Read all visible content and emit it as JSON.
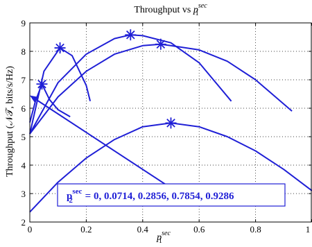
{
  "chart_data": {
    "type": "line",
    "title": "Throughput vs ",
    "title_math": "p",
    "title_sub": "1",
    "title_sup": "sec",
    "xlabel_math": "p",
    "xlabel_sub": "1",
    "xlabel_sup": "sec",
    "ylabel": "Throughput (𝒩𝒯, bits/s/Hz)",
    "xlim": [
      0,
      1
    ],
    "ylim": [
      2,
      9
    ],
    "xticks": [
      0,
      0.2,
      0.4,
      0.6,
      0.8,
      1
    ],
    "xtick_labels": [
      "0",
      "0.2",
      "0.4",
      "0.6",
      "0.8",
      "1"
    ],
    "yticks": [
      2,
      3,
      4,
      5,
      6,
      7,
      8,
      9
    ],
    "ytick_labels": [
      "2",
      "3",
      "4",
      "5",
      "6",
      "7",
      "8",
      "9"
    ],
    "grid": true,
    "line_color": "#1f1fd6",
    "series": [
      {
        "x": [
          0,
          0.02,
          0.043,
          0.07,
          0.1,
          0.143
        ],
        "y": [
          5.5,
          6.25,
          6.85,
          6.3,
          5.95,
          5.7
        ]
      },
      {
        "x": [
          0,
          0.05,
          0.107,
          0.15,
          0.2,
          0.214
        ],
        "y": [
          5.1,
          7.3,
          8.12,
          7.85,
          6.8,
          6.25
        ]
      },
      {
        "x": [
          0,
          0.1,
          0.2,
          0.3,
          0.357,
          0.4,
          0.5,
          0.6,
          0.714
        ],
        "y": [
          5.1,
          6.9,
          7.9,
          8.45,
          8.58,
          8.55,
          8.3,
          7.6,
          6.25
        ]
      },
      {
        "x": [
          0,
          0.1,
          0.2,
          0.3,
          0.4,
          0.464,
          0.5,
          0.6,
          0.7,
          0.8,
          0.929
        ],
        "y": [
          5.1,
          6.4,
          7.3,
          7.9,
          8.2,
          8.25,
          8.2,
          8.05,
          7.65,
          7.0,
          5.9
        ]
      },
      {
        "x": [
          0,
          0.1,
          0.2,
          0.3,
          0.4,
          0.5,
          0.6,
          0.7,
          0.8,
          0.9,
          1.0
        ],
        "y": [
          2.35,
          3.4,
          4.25,
          4.9,
          5.35,
          5.48,
          5.35,
          5.0,
          4.5,
          3.85,
          3.1
        ]
      }
    ],
    "markers": [
      {
        "x": 0.043,
        "y": 6.85
      },
      {
        "x": 0.107,
        "y": 8.12
      },
      {
        "x": 0.357,
        "y": 8.58
      },
      {
        "x": 0.464,
        "y": 8.25
      },
      {
        "x": 0.5,
        "y": 5.48
      }
    ],
    "annotation": {
      "text_main": "p",
      "text_sub": "2",
      "text_sup": "sec",
      "text_values": " = 0, 0.0714, 0.2856, 0.7854, 0.9286",
      "arrow_from": {
        "x": 0.5,
        "y": 3.2
      },
      "arrow_to": {
        "x": 0.0,
        "y": 6.45
      }
    }
  }
}
